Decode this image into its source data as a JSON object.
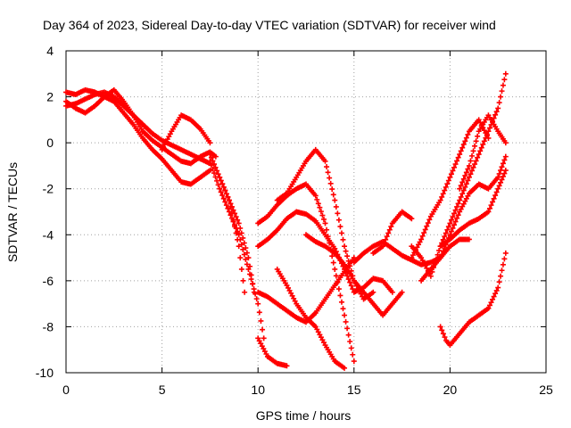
{
  "chart_data": {
    "type": "scatter",
    "title": "Day 364 of 2023, Sidereal Day-to-day VTEC variation (SDTVAR) for receiver wind",
    "xlabel": "GPS time / hours",
    "ylabel": "SDTVAR / TECUs",
    "xlim": [
      0,
      25
    ],
    "ylim": [
      -10,
      4
    ],
    "xticks": [
      0,
      5,
      10,
      15,
      20,
      25
    ],
    "yticks": [
      -10,
      -8,
      -6,
      -4,
      -2,
      0,
      2,
      4
    ],
    "grid": true,
    "marker": "+",
    "color": "#ff0000",
    "series": [
      {
        "x": [
          0,
          0.5,
          1,
          1.5,
          2,
          2.5,
          3,
          3.5,
          4,
          4.5,
          5,
          5.5,
          6,
          6.5,
          7,
          7.5,
          7.8
        ],
        "y": [
          1.8,
          1.5,
          1.3,
          1.6,
          2.0,
          2.3,
          1.8,
          1.2,
          0.5,
          0.1,
          -0.2,
          -0.5,
          -0.8,
          -0.9,
          -0.6,
          -0.4,
          -0.6
        ]
      },
      {
        "x": [
          0,
          0.5,
          1,
          1.5,
          2,
          2.5,
          3,
          3.5,
          4,
          4.5,
          5,
          5.5,
          6,
          6.5,
          7,
          7.5
        ],
        "y": [
          2.2,
          2.1,
          2.3,
          2.2,
          2.0,
          1.8,
          1.3,
          0.8,
          0.2,
          -0.3,
          -0.7,
          -1.2,
          -1.7,
          -1.8,
          -1.5,
          -1.2
        ]
      },
      {
        "x": [
          0,
          0.5,
          1,
          1.5,
          2,
          2.5,
          3,
          3.5,
          4,
          4.5,
          5,
          5.5,
          6,
          6.5,
          7,
          7.5
        ],
        "y": [
          1.6,
          1.7,
          1.9,
          2.1,
          2.2,
          2.0,
          1.6,
          1.2,
          0.8,
          0.4,
          0.1,
          -0.1,
          -0.3,
          -0.5,
          -0.7,
          -0.9
        ]
      },
      {
        "x": [
          5,
          5.5,
          6,
          6.5,
          7,
          7.5
        ],
        "y": [
          -0.3,
          0.5,
          1.2,
          1.0,
          0.6,
          0.0
        ]
      },
      {
        "x": [
          7.5,
          8,
          8.5,
          9,
          9.5,
          9.8
        ],
        "y": [
          -0.5,
          -1.5,
          -2.5,
          -3.5,
          -5.0,
          -6.5
        ]
      },
      {
        "x": [
          7.5,
          8,
          8.5,
          9,
          9.5,
          10,
          10.3
        ],
        "y": [
          -0.8,
          -2.0,
          -3.0,
          -4.0,
          -5.5,
          -7.0,
          -8.5
        ]
      },
      {
        "x": [
          8,
          8.5,
          9,
          9.3
        ],
        "y": [
          -1.5,
          -2.5,
          -4.5,
          -6.5
        ]
      },
      {
        "x": [
          10,
          10.5,
          11,
          11.5
        ],
        "y": [
          -8.5,
          -9.3,
          -9.6,
          -9.7
        ]
      },
      {
        "x": [
          10,
          10.5,
          11,
          11.5,
          12,
          12.5,
          13,
          13.5,
          14,
          14.5,
          15
        ],
        "y": [
          -3.5,
          -3.2,
          -2.7,
          -2.3,
          -2.0,
          -1.8,
          -2.3,
          -3.5,
          -5.5,
          -7.5,
          -9.5
        ]
      },
      {
        "x": [
          10,
          10.5,
          11,
          11.5,
          12,
          12.5,
          13,
          13.5,
          14,
          14.5,
          15,
          15.5,
          16,
          16.5,
          17
        ],
        "y": [
          -4.5,
          -4.2,
          -3.8,
          -3.3,
          -3.0,
          -3.1,
          -3.4,
          -4.0,
          -4.6,
          -5.5,
          -6.5,
          -6.3,
          -5.9,
          -6.0,
          -6.5
        ]
      },
      {
        "x": [
          10,
          10.5,
          11,
          11.5,
          12,
          12.5,
          13,
          13.5,
          14,
          14.5,
          15
        ],
        "y": [
          -6.5,
          -6.7,
          -7.0,
          -7.3,
          -7.6,
          -7.8,
          -7.4,
          -6.8,
          -6.2,
          -5.6,
          -5.0
        ]
      },
      {
        "x": [
          11,
          11.5,
          12,
          12.5,
          13,
          13.5,
          14,
          14.5
        ],
        "y": [
          -5.5,
          -6.2,
          -7.0,
          -7.6,
          -8.0,
          -8.8,
          -9.5,
          -9.8
        ]
      },
      {
        "x": [
          11,
          11.5,
          12,
          12.5,
          13,
          13.5,
          14,
          14.5,
          15,
          15.5,
          16
        ],
        "y": [
          -2.5,
          -2.2,
          -1.5,
          -0.8,
          -0.3,
          -0.8,
          -2.5,
          -4.5,
          -6.0,
          -6.8,
          -6.5
        ]
      },
      {
        "x": [
          12.5,
          13,
          13.5,
          14,
          14.5,
          15,
          15.5,
          16,
          16.5,
          17,
          17.5
        ],
        "y": [
          -4.0,
          -4.3,
          -4.5,
          -4.8,
          -5.3,
          -6.0,
          -6.5,
          -7.0,
          -7.5,
          -7.0,
          -6.5
        ]
      },
      {
        "x": [
          15,
          15.5,
          16,
          16.5,
          17,
          17.5,
          18,
          18.5,
          19,
          19.5,
          20,
          20.5,
          21
        ],
        "y": [
          -5.2,
          -4.8,
          -4.5,
          -4.3,
          -4.6,
          -4.9,
          -5.1,
          -5.3,
          -5.2,
          -5.0,
          -4.5,
          -4.2,
          -4.2
        ]
      },
      {
        "x": [
          16,
          16.5,
          17,
          17.5,
          18
        ],
        "y": [
          -4.8,
          -4.5,
          -3.5,
          -3.0,
          -3.3
        ]
      },
      {
        "x": [
          18,
          18.5,
          19,
          19.5,
          20,
          20.5,
          21,
          21.5,
          22,
          22.5,
          22.9
        ],
        "y": [
          -4.5,
          -5.0,
          -5.8,
          -4.5,
          -3.5,
          -2.5,
          -1.5,
          -0.5,
          0.5,
          1.5,
          3.0
        ]
      },
      {
        "x": [
          18.5,
          19,
          19.5,
          20,
          20.5,
          21,
          21.5,
          22,
          22.5,
          22.9
        ],
        "y": [
          -6.0,
          -5.5,
          -5.0,
          -4.0,
          -3.0,
          -2.2,
          -1.8,
          -2.0,
          -1.5,
          -0.6
        ]
      },
      {
        "x": [
          18,
          18.5,
          19,
          19.5,
          20,
          20.5,
          21,
          21.5,
          22
        ],
        "y": [
          -5.0,
          -4.2,
          -3.2,
          -2.5,
          -1.5,
          -0.5,
          0.5,
          1.0,
          0.2
        ]
      },
      {
        "x": [
          19.5,
          20,
          20.5,
          21,
          21.5,
          22,
          22.5,
          22.9
        ],
        "y": [
          -4.5,
          -4.2,
          -3.8,
          -3.5,
          -3.3,
          -3.0,
          -2.0,
          -1.2
        ]
      },
      {
        "x": [
          20.5,
          21,
          21.5,
          22,
          22.5,
          22.9
        ],
        "y": [
          -2.0,
          -1.0,
          0.5,
          1.2,
          0.5,
          0.0
        ]
      },
      {
        "x": [
          19.5,
          19.8,
          20,
          20.5,
          21,
          21.5,
          22,
          22.5,
          22.9
        ],
        "y": [
          -8.0,
          -8.6,
          -8.8,
          -8.3,
          -7.8,
          -7.5,
          -7.2,
          -6.3,
          -4.8
        ]
      }
    ]
  }
}
